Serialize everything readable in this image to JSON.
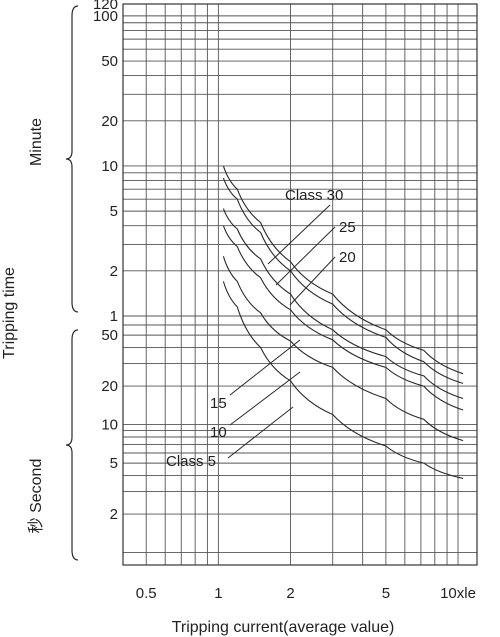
{
  "colors": {
    "line": "#2a2a2a",
    "grid": "#555555",
    "background": "#ffffff"
  },
  "chart_data": {
    "type": "line",
    "title": "",
    "xlabel": "Tripping current(average value)",
    "ylabel": "Tripping time",
    "x_scale": "log",
    "xlim": [
      0.4,
      12
    ],
    "x_ticks": [
      {
        "value": 0.5,
        "label": "0.5"
      },
      {
        "value": 1,
        "label": "1"
      },
      {
        "value": 2,
        "label": "2"
      },
      {
        "value": 5,
        "label": "5"
      },
      {
        "value": 10,
        "label": "10xle"
      }
    ],
    "grid": true,
    "y_sections": [
      {
        "label": "Minute",
        "unit": "min",
        "scale": "log",
        "ylim": [
          1,
          120
        ],
        "ticks": [
          {
            "value": 120,
            "label": "120"
          },
          {
            "value": 100,
            "label": "100"
          },
          {
            "value": 50,
            "label": "50"
          },
          {
            "value": 20,
            "label": "20"
          },
          {
            "value": 10,
            "label": "10"
          },
          {
            "value": 5,
            "label": "5"
          },
          {
            "value": 2,
            "label": "2"
          },
          {
            "value": 1,
            "label": "1"
          }
        ]
      },
      {
        "label": "秒 Second",
        "unit": "s",
        "scale": "log",
        "ylim": [
          0.8,
          60
        ],
        "ticks": [
          {
            "value": 50,
            "label": "50"
          },
          {
            "value": 20,
            "label": "20"
          },
          {
            "value": 10,
            "label": "10"
          },
          {
            "value": 5,
            "label": "5"
          },
          {
            "value": 2,
            "label": "2"
          }
        ]
      }
    ],
    "series": [
      {
        "name": "Class 30",
        "unit": "min",
        "x": [
          1.05,
          1.2,
          1.5,
          2,
          3,
          5,
          7.2,
          10.5
        ],
        "y": [
          10,
          7,
          4.2,
          2.3,
          1.4,
          55,
          38,
          25
        ]
      },
      {
        "name": "25",
        "unit": "min",
        "x": [
          1.05,
          1.2,
          1.5,
          2,
          3,
          5,
          7.2,
          10.5
        ],
        "y": [
          8.3,
          6,
          3.6,
          2,
          1.2,
          48,
          31,
          21
        ]
      },
      {
        "name": "20",
        "unit": "min",
        "x": [
          1.05,
          1.2,
          1.5,
          2,
          3,
          5,
          7.2,
          10.5
        ],
        "y": [
          5.2,
          3.8,
          2.4,
          1.4,
          55,
          34,
          24,
          16
        ]
      },
      {
        "name": "15",
        "unit": "min",
        "x": [
          1.05,
          1.2,
          1.5,
          2,
          3,
          5,
          7.2,
          10.5
        ],
        "y": [
          4,
          2.9,
          1.8,
          1.1,
          46,
          28,
          20,
          13
        ]
      },
      {
        "name": "10",
        "unit": "min",
        "x": [
          1.05,
          1.2,
          1.5,
          2,
          3,
          5,
          7.2,
          10.5
        ],
        "y": [
          2.5,
          1.7,
          1.05,
          45,
          28,
          16,
          11,
          7.5
        ]
      },
      {
        "name": "Class 5",
        "unit": "min",
        "x": [
          1.05,
          1.2,
          1.5,
          2,
          3,
          5,
          7.2,
          10.5
        ],
        "y": [
          1.7,
          1.15,
          40,
          22,
          12,
          6.8,
          5,
          3.8
        ]
      }
    ],
    "annotations": [
      {
        "text": "Class 30",
        "points_to": "Class 30"
      },
      {
        "text": "25",
        "points_to": "25"
      },
      {
        "text": "20",
        "points_to": "20"
      },
      {
        "text": "15",
        "points_to": "15"
      },
      {
        "text": "10",
        "points_to": "10"
      },
      {
        "text": "Class 5",
        "points_to": "Class 5"
      }
    ]
  }
}
